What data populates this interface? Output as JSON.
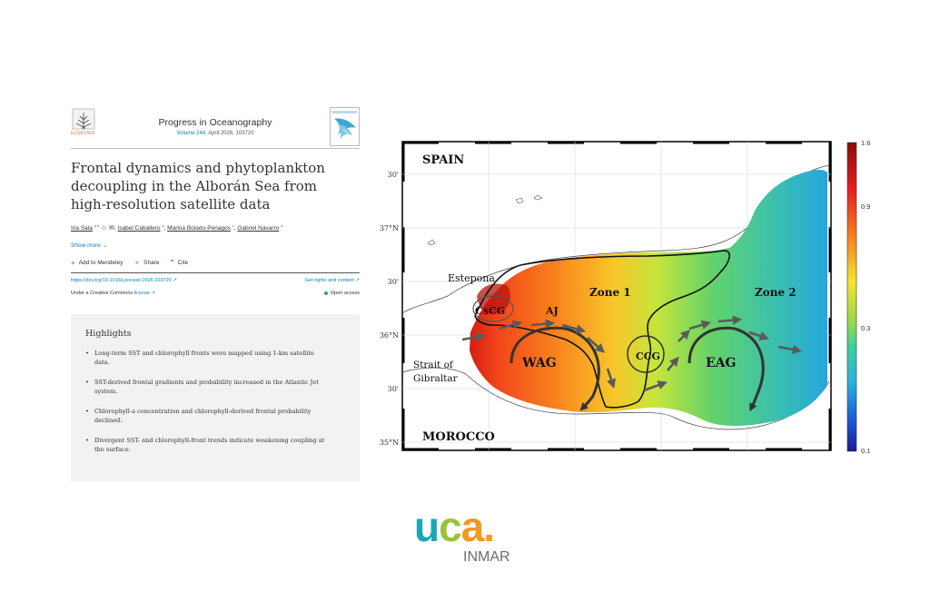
{
  "article": {
    "publisher": "ELSEVIER",
    "journal": "Progress in Oceanography",
    "volume_link": "Volume 244",
    "volume_rest": ", April 2026, 103720",
    "title": "Frontal dynamics and phytoplankton decoupling in the Alborán Sea from high-resolution satellite data",
    "authors": [
      {
        "name": "Iria Sala",
        "sup": "a b"
      },
      {
        "name": "Isabel Caballero",
        "sup": "a"
      },
      {
        "name": "Marina Bolado-Penagos",
        "sup": "c"
      },
      {
        "name": "Gabriel Navarro",
        "sup": "a"
      }
    ],
    "show_more": "Show more",
    "actions": [
      "Add to Mendeley",
      "Share",
      "Cite"
    ],
    "doi": "https://doi.org/10.1016/j.pocean.2026.103720 ↗",
    "rights": "Get rights and content ↗",
    "license_prefix": "Under a Creative Commons ",
    "license_link": "license ↗",
    "open_access": "Open access"
  },
  "highlights": {
    "title": "Highlights",
    "items": [
      "Long-term SST and chlorophyll fronts were mapped using 1-km satellite data.",
      "SST-derived frontal gradients and probability increased in the Atlantic Jet system.",
      "Chlorophyll-a concentration and chlorophyll-derived frontal probability declined.",
      "Divergent SST- and chlorophyll-front trends indicate weakening coupling at the surface."
    ]
  },
  "map": {
    "labels": {
      "spain": "SPAIN",
      "morocco": "MOROCCO",
      "estepona": "Estepona",
      "strait_1": "Strait of",
      "strait_2": "Gibraltar",
      "cscg": "CsCG",
      "aj": "AJ",
      "zone1": "Zone 1",
      "zone2": "Zone 2",
      "wag": "WAG",
      "ccg": "CCG",
      "eag": "EAG"
    },
    "lat_ticks": [
      "30'",
      "37°N",
      "30'",
      "36°N",
      "30'",
      "35°N"
    ],
    "colorbar_ticks": [
      "1.6",
      "0.9",
      "0.3",
      "0.1"
    ]
  },
  "footer_logo": {
    "main": "uca.",
    "sub": "INMAR",
    "colors": {
      "u": "#1aa7b5",
      "c": "#9cc23a",
      "a": "#f39a1f",
      "dot": "#f39a1f",
      "sub": "#6d6d6d"
    }
  }
}
